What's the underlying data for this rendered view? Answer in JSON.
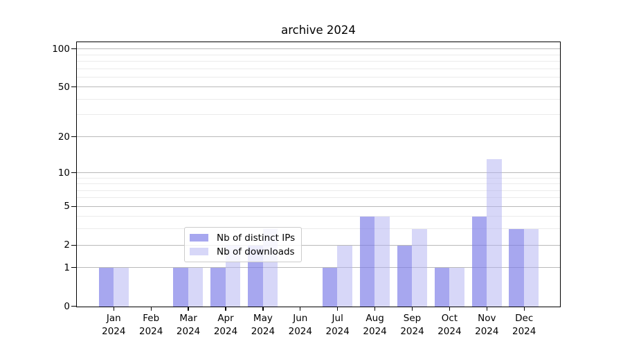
{
  "title": "archive 2024",
  "chart_data": {
    "type": "bar",
    "title": "archive 2024",
    "scale": "log1p",
    "grid": true,
    "legend_position": "lower center",
    "months": [
      "Jan",
      "Feb",
      "Mar",
      "Apr",
      "May",
      "Jun",
      "Jul",
      "Aug",
      "Sep",
      "Oct",
      "Nov",
      "Dec"
    ],
    "year": "2024",
    "series": [
      {
        "name": "Nb of distinct IPs",
        "color": "rgba(120,120,230,0.65)",
        "values": [
          1,
          0,
          1,
          1,
          2,
          0,
          1,
          4,
          2,
          1,
          4,
          3
        ]
      },
      {
        "name": "Nb of downloads",
        "color": "rgba(175,175,242,0.5)",
        "values": [
          1,
          0,
          1,
          2,
          3,
          0,
          2,
          4,
          3,
          1,
          13,
          3
        ]
      }
    ],
    "yticks": [
      0,
      1,
      2,
      5,
      10,
      20,
      50,
      100
    ],
    "minor_gridlines": [
      3,
      4,
      6,
      7,
      8,
      9,
      30,
      40,
      60,
      70,
      80,
      90
    ],
    "ylim": [
      0,
      113
    ],
    "colors": {
      "grid_major": "#b9b9b9",
      "grid_minor": "#ebebeb",
      "spine": "#000000",
      "legend_border": "#cccccc"
    }
  }
}
